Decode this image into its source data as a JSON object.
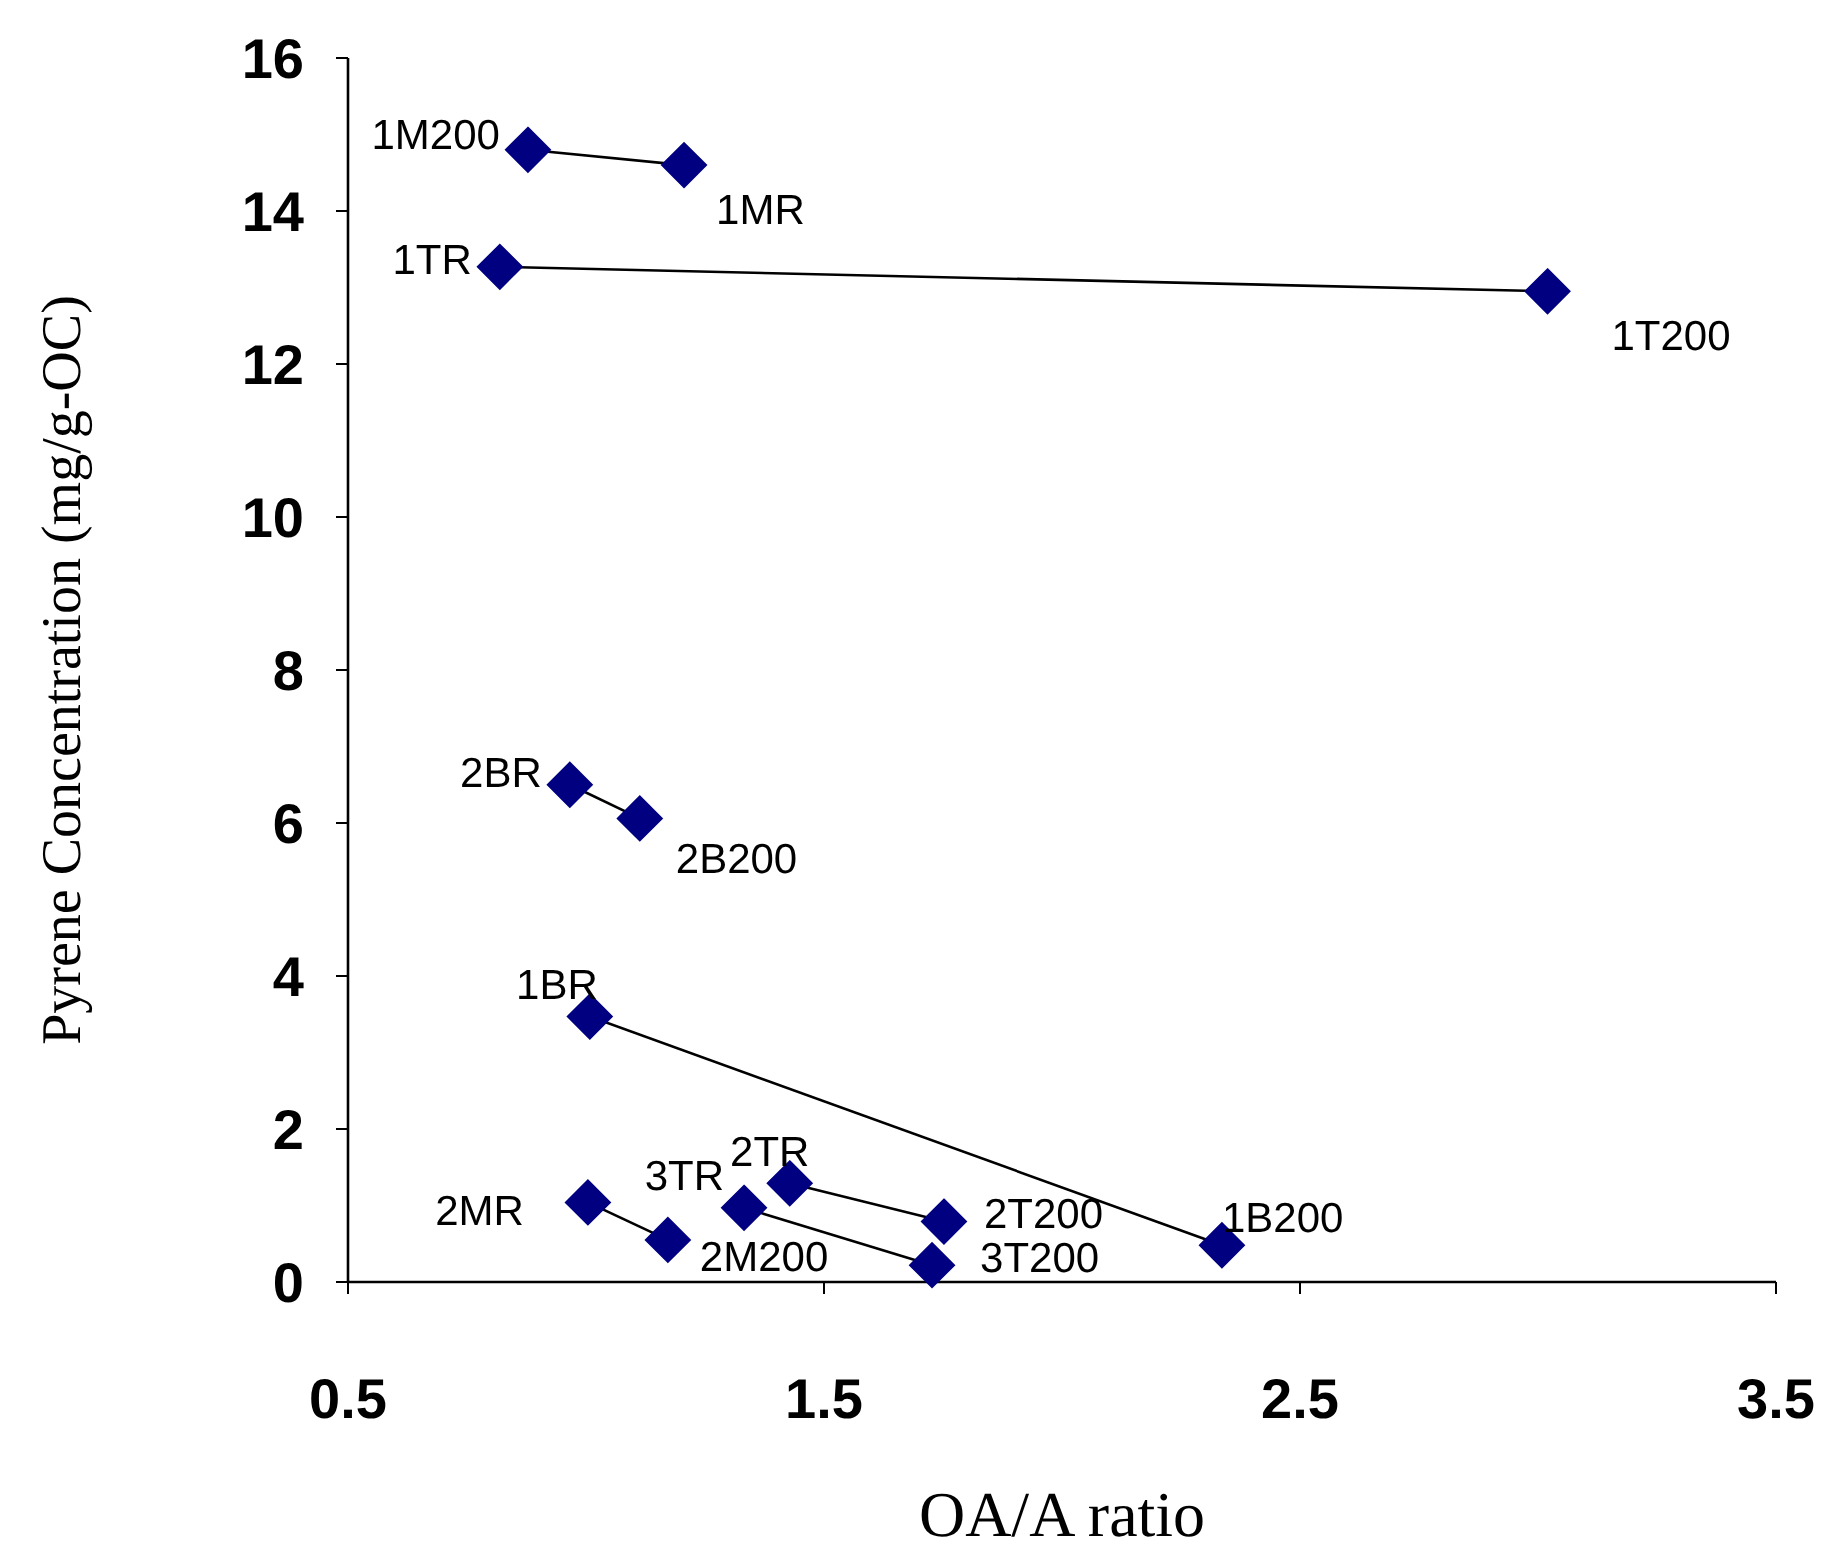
{
  "chart_data": {
    "type": "line",
    "xlabel": "OA/A ratio",
    "ylabel": "Pyrene Concentration (mg/g-OC)",
    "xlim": [
      0.5,
      3.5
    ],
    "xticks": [
      0.5,
      1.5,
      2.5,
      3.5
    ],
    "ylim": [
      0,
      16
    ],
    "yticks": [
      0,
      2,
      4,
      6,
      8,
      10,
      12,
      14,
      16
    ],
    "grid": false,
    "marker": "diamond",
    "line_style": "solid",
    "series": [
      {
        "color": "#000080",
        "x": [
          0.878,
          1.206
        ],
        "values": [
          14.8,
          14.6
        ]
      },
      {
        "color": "#000080",
        "x": [
          0.819,
          3.02
        ],
        "values": [
          13.27,
          12.95
        ]
      },
      {
        "color": "#000080",
        "x": [
          0.966,
          1.113
        ],
        "values": [
          6.5,
          6.06
        ]
      },
      {
        "color": "#000080",
        "x": [
          1.008,
          2.336
        ],
        "values": [
          3.47,
          0.48
        ]
      },
      {
        "color": "#000080",
        "x": [
          1.004,
          1.172
        ],
        "values": [
          1.04,
          0.55
        ]
      },
      {
        "color": "#000080",
        "x": [
          1.332,
          1.727
        ],
        "values": [
          0.97,
          0.22
        ]
      },
      {
        "color": "#000080",
        "x": [
          1.428,
          1.752
        ],
        "values": [
          1.29,
          0.79
        ]
      }
    ],
    "annotations": [
      {
        "text": "1M200",
        "x": 0.878,
        "y": 14.8
      },
      {
        "text": "1MR",
        "x": 1.206,
        "y": 14.6
      },
      {
        "text": "1TR",
        "x": 0.819,
        "y": 13.27
      },
      {
        "text": "1T200",
        "x": 3.02,
        "y": 12.95
      },
      {
        "text": "2BR",
        "x": 0.966,
        "y": 6.5
      },
      {
        "text": "2B200",
        "x": 1.113,
        "y": 6.06
      },
      {
        "text": "1BR",
        "x": 1.008,
        "y": 3.47
      },
      {
        "text": "1B200",
        "x": 2.336,
        "y": 0.48
      },
      {
        "text": "2MR",
        "x": 1.004,
        "y": 1.04
      },
      {
        "text": "2M200",
        "x": 1.172,
        "y": 0.55
      },
      {
        "text": "3TR",
        "x": 1.332,
        "y": 0.97
      },
      {
        "text": "3T200",
        "x": 1.727,
        "y": 0.22
      },
      {
        "text": "2TR",
        "x": 1.428,
        "y": 1.29
      },
      {
        "text": "2T200",
        "x": 1.752,
        "y": 0.79
      }
    ]
  }
}
